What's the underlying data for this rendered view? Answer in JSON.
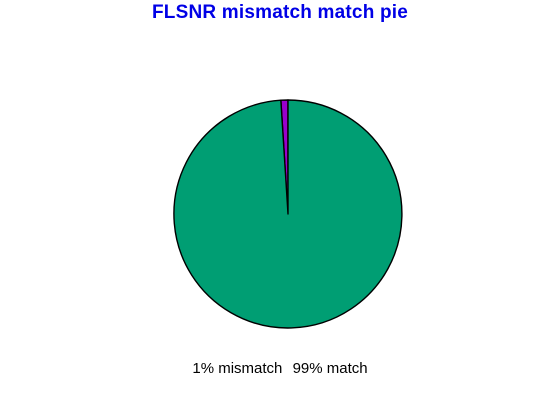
{
  "chart_data": {
    "type": "pie",
    "title": "FLSNR mismatch match  pie",
    "slices": [
      {
        "label": "mismatch",
        "value": 1,
        "percent_label": "1% mismatch",
        "color": "#9900cc"
      },
      {
        "label": "match",
        "value": 99,
        "percent_label": "99% match",
        "color": "#009e73"
      }
    ],
    "legend_placement": "bottom",
    "title_color": "#0000e6",
    "outline_color": "#000000"
  }
}
